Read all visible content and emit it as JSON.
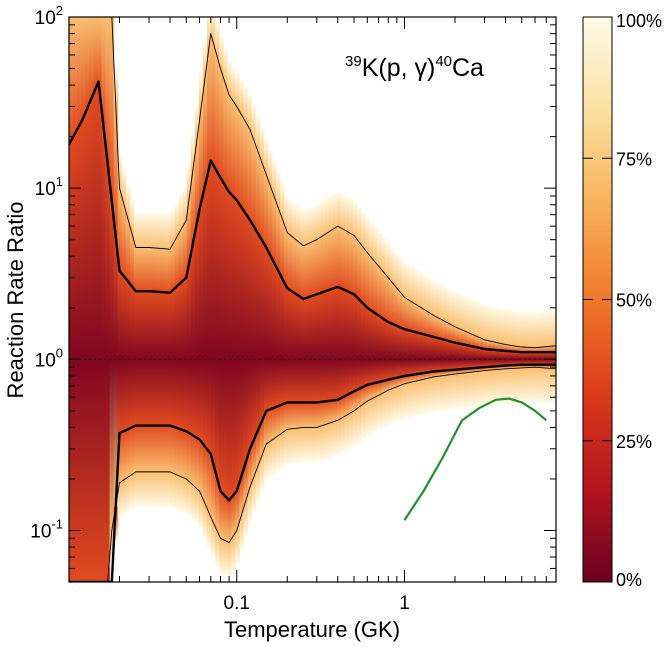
{
  "chart_data": {
    "type": "heatmap",
    "title": "",
    "annotation": {
      "mass_a": "39",
      "element_a": "K(p, γ)",
      "mass_b": "40",
      "element_b": "Ca"
    },
    "xlabel": "Temperature (GK)",
    "ylabel": "Reaction Rate Ratio",
    "x_scale": "log",
    "y_scale": "log",
    "xlim": [
      0.01,
      8.0
    ],
    "ylim": [
      0.05,
      100
    ],
    "x_ticks": [
      {
        "value": 0.1,
        "label": "0.1"
      },
      {
        "value": 1,
        "label": "1"
      }
    ],
    "y_ticks": [
      {
        "value": 0.1,
        "base": "10",
        "exp": "-1"
      },
      {
        "value": 1,
        "base": "10",
        "exp": "0"
      },
      {
        "value": 10,
        "base": "10",
        "exp": "1"
      },
      {
        "value": 100,
        "base": "10",
        "exp": "2"
      }
    ],
    "reference_line": {
      "y": 1,
      "style": "dotted"
    },
    "colorbar": {
      "ticks": [
        {
          "fraction": 0.0,
          "label": "0%"
        },
        {
          "fraction": 0.25,
          "label": "25%"
        },
        {
          "fraction": 0.5,
          "label": "50%"
        },
        {
          "fraction": 0.75,
          "label": "75%"
        },
        {
          "fraction": 1.0,
          "label": "100%"
        }
      ],
      "colors": [
        "#6b0020",
        "#b3151f",
        "#db3a1c",
        "#f0782a",
        "#f8b05a",
        "#fbe0a0",
        "#fffbe8"
      ]
    },
    "series": [
      {
        "role": "median_upper",
        "line": "thick",
        "x": [
          0.01,
          0.012,
          0.015,
          0.02,
          0.025,
          0.03,
          0.04,
          0.05,
          0.06,
          0.07,
          0.08,
          0.09,
          0.1,
          0.12,
          0.15,
          0.2,
          0.25,
          0.3,
          0.4,
          0.5,
          0.6,
          0.8,
          1,
          1.5,
          2,
          3,
          4,
          5,
          6,
          8
        ],
        "y": [
          18,
          25,
          42,
          3.3,
          2.5,
          2.5,
          2.45,
          3.0,
          7.5,
          14.5,
          11.5,
          9.5,
          8.5,
          6.5,
          4.5,
          2.6,
          2.25,
          2.4,
          2.65,
          2.4,
          2.0,
          1.65,
          1.5,
          1.35,
          1.25,
          1.15,
          1.12,
          1.1,
          1.1,
          1.1
        ]
      },
      {
        "role": "median_lower",
        "line": "thick",
        "x": [
          0.01,
          0.015,
          0.018,
          0.02,
          0.025,
          0.03,
          0.04,
          0.05,
          0.06,
          0.07,
          0.08,
          0.09,
          0.1,
          0.12,
          0.15,
          0.2,
          0.25,
          0.3,
          0.4,
          0.5,
          0.6,
          0.8,
          1,
          1.5,
          2,
          3,
          4,
          5,
          6,
          8
        ],
        "y": [
          0.05,
          0.05,
          0.05,
          0.37,
          0.41,
          0.41,
          0.41,
          0.38,
          0.34,
          0.28,
          0.17,
          0.15,
          0.17,
          0.3,
          0.5,
          0.56,
          0.56,
          0.56,
          0.58,
          0.65,
          0.71,
          0.76,
          0.8,
          0.85,
          0.87,
          0.9,
          0.92,
          0.93,
          0.93,
          0.93
        ]
      },
      {
        "role": "outer_upper",
        "line": "thin",
        "x": [
          0.01,
          0.012,
          0.015,
          0.018,
          0.02,
          0.025,
          0.03,
          0.04,
          0.05,
          0.06,
          0.07,
          0.08,
          0.09,
          0.1,
          0.12,
          0.15,
          0.2,
          0.25,
          0.3,
          0.4,
          0.5,
          0.6,
          0.8,
          1,
          1.5,
          2,
          3,
          4,
          5,
          6,
          8
        ],
        "y": [
          100,
          100,
          100,
          100,
          10,
          4.5,
          4.5,
          4.4,
          6.5,
          25,
          80,
          50,
          35,
          30,
          22,
          12,
          5.5,
          4.6,
          5.0,
          6.0,
          5.3,
          4.2,
          3.0,
          2.3,
          1.8,
          1.55,
          1.3,
          1.22,
          1.18,
          1.17,
          1.2
        ]
      },
      {
        "role": "outer_lower",
        "line": "thin",
        "x": [
          0.016,
          0.017,
          0.018,
          0.02,
          0.025,
          0.03,
          0.04,
          0.05,
          0.06,
          0.07,
          0.08,
          0.09,
          0.1,
          0.12,
          0.15,
          0.2,
          0.25,
          0.3,
          0.4,
          0.5,
          0.6,
          0.8,
          1,
          1.5,
          2,
          3,
          4,
          5,
          6,
          8
        ],
        "y": [
          0.05,
          0.05,
          0.1,
          0.19,
          0.22,
          0.22,
          0.22,
          0.2,
          0.17,
          0.12,
          0.09,
          0.085,
          0.1,
          0.18,
          0.32,
          0.39,
          0.4,
          0.4,
          0.44,
          0.5,
          0.57,
          0.66,
          0.72,
          0.79,
          0.82,
          0.86,
          0.88,
          0.89,
          0.9,
          0.88
        ]
      },
      {
        "role": "comparison",
        "line": "green",
        "color": "#22912a",
        "x": [
          1.0,
          1.3,
          1.7,
          2.2,
          2.8,
          3.5,
          4.2,
          5.0,
          6.0,
          7.0
        ],
        "y": [
          0.115,
          0.17,
          0.27,
          0.44,
          0.52,
          0.58,
          0.59,
          0.56,
          0.5,
          0.44
        ]
      }
    ]
  }
}
